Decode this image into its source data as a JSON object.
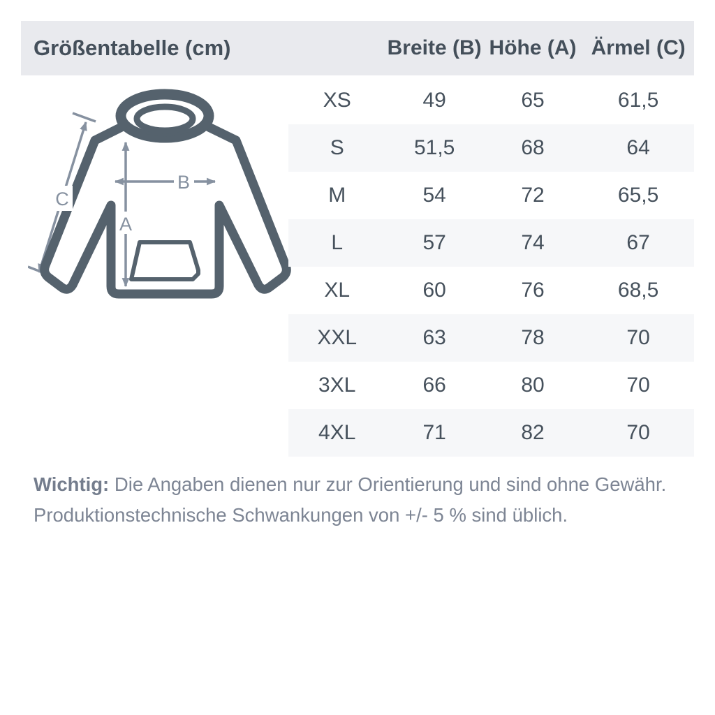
{
  "header": {
    "title": "Größentabelle (cm)",
    "columns": [
      "Breite (B)",
      "Höhe (A)",
      "Ärmel (C)"
    ],
    "background_color": "#e9eaee"
  },
  "chart_data": {
    "type": "table",
    "title": "Größentabelle (cm)",
    "unit": "cm",
    "columns": [
      "",
      "Breite (B)",
      "Höhe (A)",
      "Ärmel (C)"
    ],
    "rows": [
      [
        "XS",
        "49",
        "65",
        "61,5"
      ],
      [
        "S",
        "51,5",
        "68",
        "64"
      ],
      [
        "M",
        "54",
        "72",
        "65,5"
      ],
      [
        "L",
        "57",
        "74",
        "67"
      ],
      [
        "XL",
        "60",
        "76",
        "68,5"
      ],
      [
        "XXL",
        "63",
        "78",
        "70"
      ],
      [
        "3XL",
        "66",
        "80",
        "70"
      ],
      [
        "4XL",
        "71",
        "82",
        "70"
      ]
    ],
    "alt_row_color": "#f6f7f9",
    "text_color": "#46515c"
  },
  "diagram": {
    "labels": {
      "a": "A",
      "b": "B",
      "c": "C"
    },
    "outline_color": "#55626d",
    "arrow_color": "#8691a0"
  },
  "footer": {
    "bold": "Wichtig:",
    "line1": " Die Angaben dienen nur zur Orientierung und sind ohne Gewähr.",
    "line2": "Produktionstechnische Schwankungen von +/- 5 % sind üblich.",
    "text_color": "#7d8594"
  }
}
